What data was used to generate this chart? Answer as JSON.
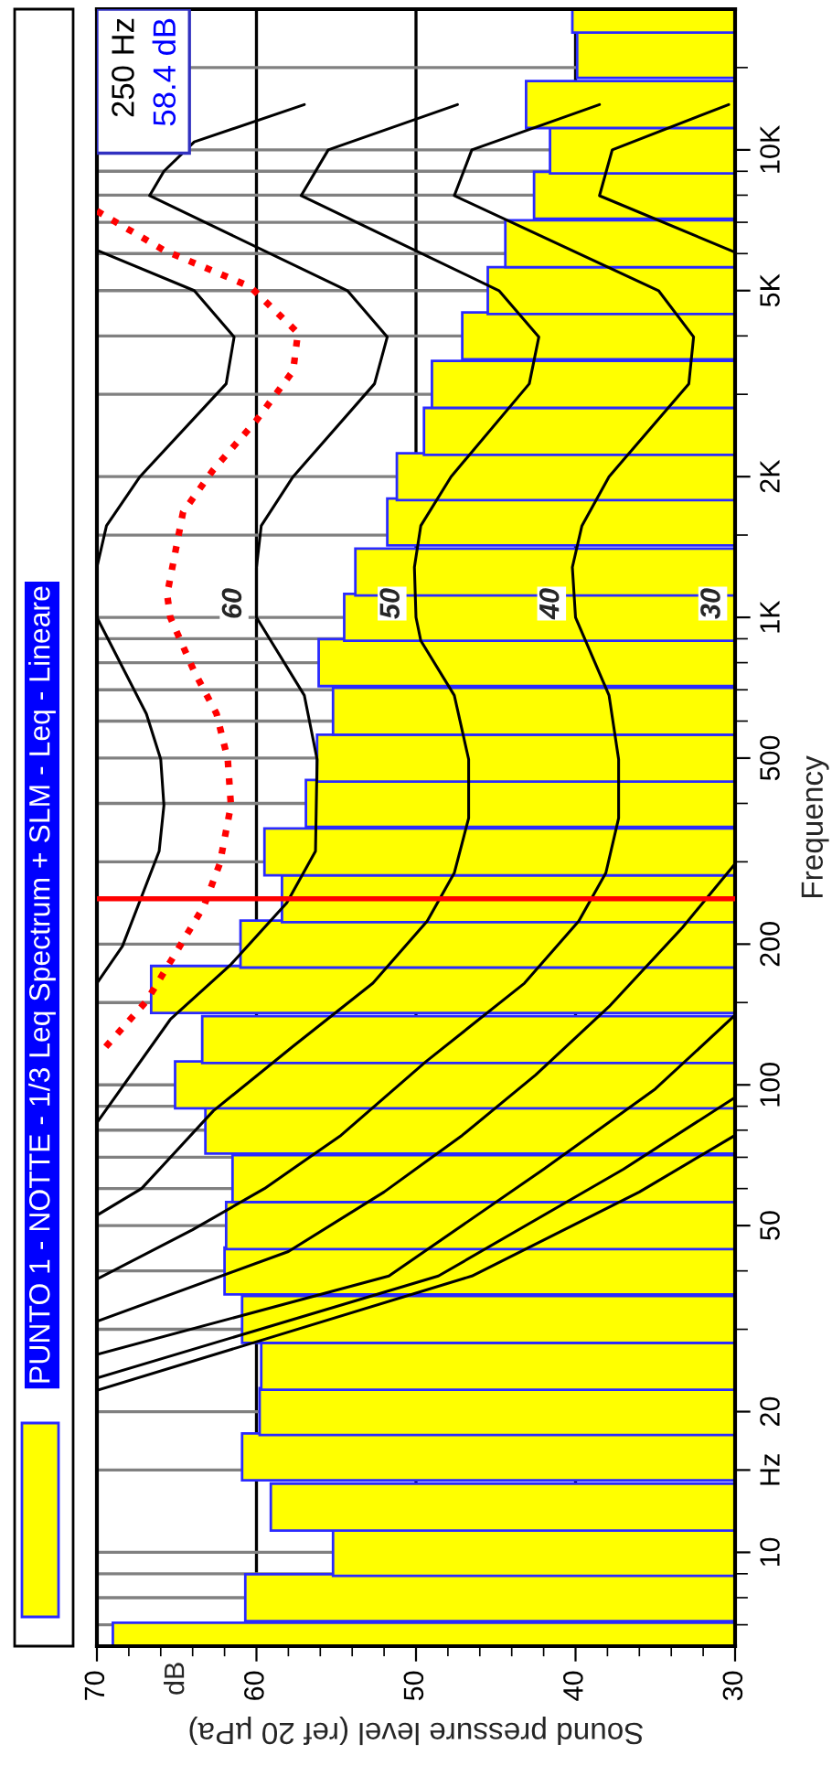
{
  "chart_data": {
    "type": "bar",
    "orientation": "horizontal",
    "title": "PUNTO 1 - NOTTE - 1/3 Leq Spectrum + SLM - Leq - Lineare",
    "xlabel": "Sound pressure level (ref 20 µPa)",
    "ylabel": "Frequency",
    "xlim": [
      70,
      30
    ],
    "xticks": [
      70,
      {
        "value": 68,
        "label": null
      },
      {
        "value": 66,
        "label": null
      },
      {
        "value": 64,
        "label": null
      },
      {
        "value": 62,
        "label": null
      },
      60,
      {
        "value": 58,
        "label": null
      },
      {
        "value": 56,
        "label": null
      },
      {
        "value": 54,
        "label": null
      },
      {
        "value": 52,
        "label": null
      },
      50,
      {
        "value": 48,
        "label": null
      },
      {
        "value": 46,
        "label": null
      },
      {
        "value": 44,
        "label": null
      },
      {
        "value": 42,
        "label": null
      },
      40,
      {
        "value": 38,
        "label": null
      },
      {
        "value": 36,
        "label": null
      },
      {
        "value": 34,
        "label": null
      },
      {
        "value": 32,
        "label": null
      },
      30
    ],
    "log": "y",
    "ylim": [
      6.3,
      20000
    ],
    "yticks": [
      {
        "value": 7,
        "label": null
      },
      {
        "value": 8,
        "label": null
      },
      {
        "value": 9,
        "label": null
      },
      10,
      {
        "value": 15,
        "label": "Hz"
      },
      20,
      {
        "value": 30,
        "label": null
      },
      {
        "value": 40,
        "label": null
      },
      50,
      {
        "value": 60,
        "label": null
      },
      {
        "value": 70,
        "label": null
      },
      {
        "value": 80,
        "label": null
      },
      {
        "value": 90,
        "label": null
      },
      100,
      {
        "value": 150,
        "label": null
      },
      200,
      {
        "value": 300,
        "label": null
      },
      {
        "value": 400,
        "label": null
      },
      500,
      {
        "value": 600,
        "label": null
      },
      {
        "value": 700,
        "label": null
      },
      {
        "value": 800,
        "label": null
      },
      {
        "value": 900,
        "label": null
      },
      {
        "value": 1000,
        "label": "1K"
      },
      {
        "value": 1500,
        "label": null
      },
      {
        "value": 2000,
        "label": "2K"
      },
      {
        "value": 3000,
        "label": null
      },
      {
        "value": 4000,
        "label": null
      },
      {
        "value": 5000,
        "label": "5K"
      },
      {
        "value": 6000,
        "label": null
      },
      {
        "value": 7000,
        "label": null
      },
      {
        "value": 8000,
        "label": null
      },
      {
        "value": 9000,
        "label": null
      },
      {
        "value": 10000,
        "label": "10K"
      },
      {
        "value": 15000,
        "label": null
      }
    ],
    "grid": true,
    "ref_lines": [
      {
        "axis": "y",
        "value": 250,
        "color": "#ff0000"
      }
    ],
    "annotations": [
      "dB",
      "250 Hz",
      "58.4 dB",
      {
        "text": "60",
        "x": 61.4,
        "y": 1070
      },
      {
        "text": "50",
        "x": 51.5,
        "y": 1070
      },
      {
        "text": "40",
        "x": 41.5,
        "y": 1070
      },
      {
        "text": "30",
        "x": 31.4,
        "y": 1070
      }
    ],
    "series": [
      {
        "color": "#ffff00",
        "x": [
          6.3,
          8,
          10,
          12.5,
          16,
          20,
          25,
          31.5,
          40,
          50,
          63,
          80,
          100,
          125,
          160,
          200,
          250,
          315,
          400,
          500,
          630,
          800,
          1000,
          1250,
          1600,
          2000,
          2500,
          3150,
          4000,
          5000,
          6300,
          8000,
          10000,
          12500,
          16000,
          20000
        ],
        "values": [
          69.0,
          60.7,
          55.2,
          59.1,
          60.9,
          59.8,
          59.7,
          60.9,
          62.0,
          61.9,
          61.5,
          63.2,
          65.1,
          63.4,
          66.6,
          61.0,
          58.4,
          59.5,
          56.9,
          56.2,
          55.2,
          56.1,
          54.5,
          53.8,
          51.8,
          51.2,
          49.5,
          49.0,
          47.1,
          45.5,
          44.4,
          42.6,
          41.6,
          43.1,
          39.9,
          40.2
        ]
      },
      {
        "type": "line",
        "color": "#000000",
        "line_style": "solid",
        "x": [
          6100,
          5000,
          3980,
          3160,
          2000,
          1570,
          1280,
          1000,
          622,
          497,
          396,
          316,
          198,
          165
        ],
        "values": [
          70,
          63.9,
          61.4,
          61.9,
          67.3,
          69.4,
          70,
          70,
          66.9,
          66.0,
          65.8,
          66.1,
          68.4,
          70
        ]
      },
      {
        "type": "line",
        "color": "#000000",
        "line_style": "solid",
        "x": [
          12500,
          10400,
          9000,
          7980,
          5000,
          3980,
          3160,
          2000,
          1570,
          1280,
          1000,
          681,
          497,
          316,
          245,
          181,
          138,
          83
        ],
        "values": [
          57.0,
          63.9,
          65.8,
          66.7,
          54.3,
          51.8,
          52.6,
          57.7,
          59.7,
          60.0,
          60.0,
          57.0,
          56.2,
          56.3,
          58.1,
          61.6,
          65.4,
          70
        ]
      },
      {
        "type": "line",
        "color": "#000000",
        "line_style": "solid",
        "x": [
          12500,
          10000,
          7980,
          5000,
          3980,
          3160,
          2000,
          1570,
          1280,
          1000,
          892,
          681,
          497,
          372,
          284,
          224,
          165,
          121,
          88,
          60,
          52.6
        ],
        "values": [
          47.4,
          55.5,
          57.2,
          44.8,
          42.3,
          42.9,
          47.8,
          49.7,
          50.1,
          50.0,
          49.7,
          47.6,
          46.7,
          46.7,
          47.6,
          49.3,
          52.7,
          57.7,
          62.7,
          67.2,
          70
        ]
      },
      {
        "type": "line",
        "color": "#000000",
        "line_style": "solid",
        "x": [
          12500,
          10000,
          7980,
          5000,
          3980,
          3160,
          2000,
          1570,
          1280,
          1000,
          681,
          497,
          372,
          284,
          224,
          165,
          112,
          78,
          60,
          49,
          38.4
        ],
        "values": [
          38.5,
          46.5,
          47.6,
          34.8,
          32.6,
          32.9,
          37.9,
          39.6,
          40.2,
          40.0,
          37.9,
          37.3,
          37.3,
          38.1,
          39.8,
          43.2,
          49.4,
          54.7,
          59.5,
          64,
          70
        ]
      },
      {
        "type": "line",
        "color": "#000000",
        "line_style": "solid",
        "x": [
          12500,
          10000,
          7980,
          6040,
          1000,
          297,
          217,
          147,
          105,
          78,
          59,
          44,
          31.2
        ],
        "values": [
          30.4,
          37.7,
          38.5,
          30,
          null,
          30,
          33.3,
          37.9,
          42.5,
          47.1,
          52,
          58,
          70
        ]
      },
      {
        "type": "line",
        "color": "#000000",
        "line_style": "solid",
        "x": [
          141,
          98,
          66,
          39,
          26.5
        ],
        "values": [
          30,
          35,
          42,
          51.7,
          70
        ]
      },
      {
        "type": "line",
        "color": "#000000",
        "line_style": "solid",
        "x": [
          94,
          66,
          39,
          23.6
        ],
        "values": [
          30,
          37,
          48.6,
          70
        ]
      },
      {
        "type": "line",
        "color": "#000000",
        "line_style": "solid",
        "x": [
          78,
          59,
          39,
          22.2
        ],
        "values": [
          30,
          36,
          46.5,
          70
        ]
      },
      {
        "type": "line",
        "color": "#ff0000",
        "line_style": "dotted",
        "x": [
          7400,
          6100,
          5100,
          4060,
          3370,
          2640,
          2070,
          1680,
          1120,
          1000,
          766,
          622,
          497,
          396,
          297,
          241,
          193,
          151,
          119
        ],
        "values": [
          70,
          65.8,
          60.4,
          57.4,
          57.7,
          60.0,
          62.7,
          64.6,
          65.6,
          65.4,
          63.9,
          62.5,
          61.8,
          61.6,
          62.3,
          63.3,
          65.0,
          66.9,
          69.6
        ]
      }
    ]
  }
}
